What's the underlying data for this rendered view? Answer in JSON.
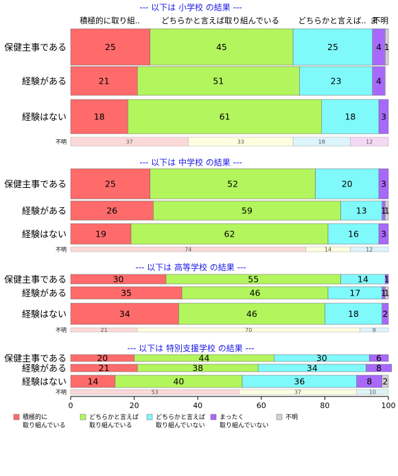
{
  "chart_data": {
    "type": "bar",
    "orientation": "horizontal",
    "stacked": true,
    "xlim": [
      0,
      100
    ],
    "x_ticks": [
      "0",
      "20",
      "40",
      "60",
      "80",
      "100"
    ],
    "column_headers": [
      "積極的に取り組..",
      "どちらかと言えば取り組んでいる",
      "どちらかと言えば..",
      "ま",
      "不明"
    ],
    "legend": [
      {
        "label": "積極的に\n取り組んでいる",
        "color": "#ff6b6b"
      },
      {
        "label": "どちらかと言えば\n取り組んでいる",
        "color": "#b3f55d"
      },
      {
        "label": "どちらかと言えば\n取り組んでいない",
        "color": "#80f9fb"
      },
      {
        "label": "まったく\n取り組んでいない",
        "color": "#a869fb"
      },
      {
        "label": "不明",
        "color": "#d4d4d4"
      }
    ],
    "groups": [
      {
        "title": "--- 以下は 小学校 の結果 ---",
        "rows": [
          {
            "label": "保健主事である",
            "values": [
              25,
              45,
              25,
              4,
              1
            ]
          },
          {
            "label": "経験がある",
            "values": [
              21,
              51,
              23,
              4,
              0
            ]
          },
          {
            "label": "経験はない",
            "values": [
              18,
              61,
              18,
              3,
              0
            ]
          }
        ],
        "unknown": {
          "label": "不明",
          "values": [
            37,
            33,
            18,
            12,
            0
          ]
        }
      },
      {
        "title": "--- 以下は 中学校 の結果 ---",
        "rows": [
          {
            "label": "保健主事である",
            "values": [
              25,
              52,
              20,
              3,
              0
            ]
          },
          {
            "label": "経験がある",
            "values": [
              26,
              59,
              13,
              1,
              1
            ]
          },
          {
            "label": "経験はない",
            "values": [
              19,
              62,
              16,
              3,
              0
            ]
          }
        ],
        "unknown": {
          "label": "不明",
          "values": [
            74,
            14,
            12,
            0,
            0
          ]
        }
      },
      {
        "title": "--- 以下は 高等学校 の結果 ---",
        "rows": [
          {
            "label": "保健主事である",
            "values": [
              30,
              55,
              14,
              1,
              0
            ]
          },
          {
            "label": "経験がある",
            "values": [
              35,
              46,
              17,
              1,
              1
            ]
          },
          {
            "label": "経験はない",
            "values": [
              34,
              46,
              18,
              2,
              0
            ]
          }
        ],
        "unknown": {
          "label": "不明",
          "values": [
            21,
            70,
            9,
            0,
            0
          ]
        }
      },
      {
        "title": "--- 以下は 特別支援学校 の結果 ---",
        "rows": [
          {
            "label": "保健主事である",
            "values": [
              20,
              44,
              30,
              6,
              0
            ]
          },
          {
            "label": "経験がある",
            "values": [
              21,
              38,
              34,
              8,
              0
            ]
          },
          {
            "label": "経験はない",
            "values": [
              14,
              40,
              36,
              8,
              2
            ]
          }
        ],
        "unknown": {
          "label": "不明",
          "values": [
            53,
            37,
            10,
            0,
            0
          ]
        }
      }
    ]
  }
}
